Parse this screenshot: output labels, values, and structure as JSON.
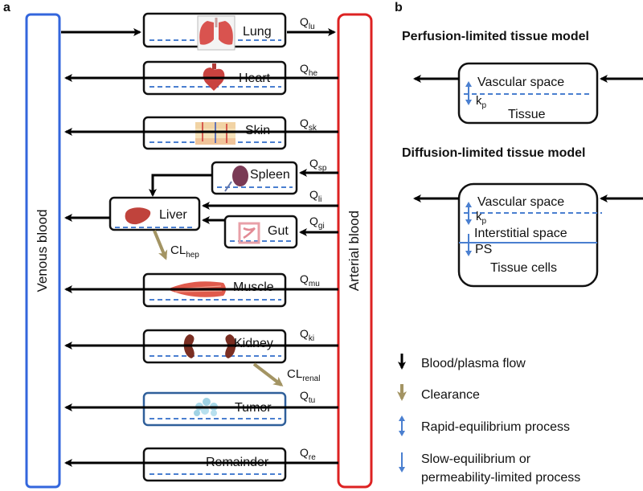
{
  "panel_a": {
    "label": "a",
    "venous_label": "Venous blood",
    "arterial_label": "Arterial blood",
    "organs": {
      "lung": {
        "name": "Lung",
        "q_main": "Q",
        "q_sub": "lu",
        "icon": "lung-icon"
      },
      "heart": {
        "name": "Heart",
        "q_main": "Q",
        "q_sub": "he",
        "icon": "heart-icon"
      },
      "skin": {
        "name": "Skin",
        "q_main": "Q",
        "q_sub": "sk",
        "icon": "skin-icon"
      },
      "spleen": {
        "name": "Spleen",
        "q_main": "Q",
        "q_sub": "sp",
        "icon": "spleen-icon"
      },
      "liver": {
        "name": "Liver",
        "q_main": "Q",
        "q_sub": "li",
        "icon": "liver-icon"
      },
      "gut": {
        "name": "Gut",
        "q_main": "Q",
        "q_sub": "gi",
        "icon": "gut-icon"
      },
      "muscle": {
        "name": "Muscle",
        "q_main": "Q",
        "q_sub": "mu",
        "icon": "muscle-icon"
      },
      "kidney": {
        "name": "Kidney",
        "q_main": "Q",
        "q_sub": "ki",
        "icon": "kidney-icon"
      },
      "tumor": {
        "name": "Tumor",
        "q_main": "Q",
        "q_sub": "tu",
        "icon": "tumor-icon"
      },
      "remainder": {
        "name": "Remainder",
        "q_main": "Q",
        "q_sub": "re"
      }
    },
    "cl_hep": {
      "main": "CL",
      "sub": "hep"
    },
    "cl_renal": {
      "main": "CL",
      "sub": "renal"
    }
  },
  "panel_b": {
    "label": "b",
    "perfusion": {
      "title": "Perfusion-limited tissue model",
      "vascular": "Vascular space",
      "kp_main": "k",
      "kp_sub": "p",
      "tissue": "Tissue"
    },
    "diffusion": {
      "title": "Diffusion-limited tissue model",
      "vascular": "Vascular space",
      "kp_main": "k",
      "kp_sub": "p",
      "interstitial": "Interstitial space",
      "ps": "PS",
      "cells": "Tissue cells"
    }
  },
  "legend": {
    "flow": "Blood/plasma flow",
    "clearance": "Clearance",
    "rapid": "Rapid-equilibrium process",
    "slow_line1": "Slow-equilibrium or",
    "slow_line2": "permeability-limited process"
  },
  "colors": {
    "venous": "#3366dd",
    "arterial": "#dd2222",
    "dashed": "#4a7fd0",
    "clearance": "#a39463",
    "tumor_border": "#2f5f9a"
  }
}
